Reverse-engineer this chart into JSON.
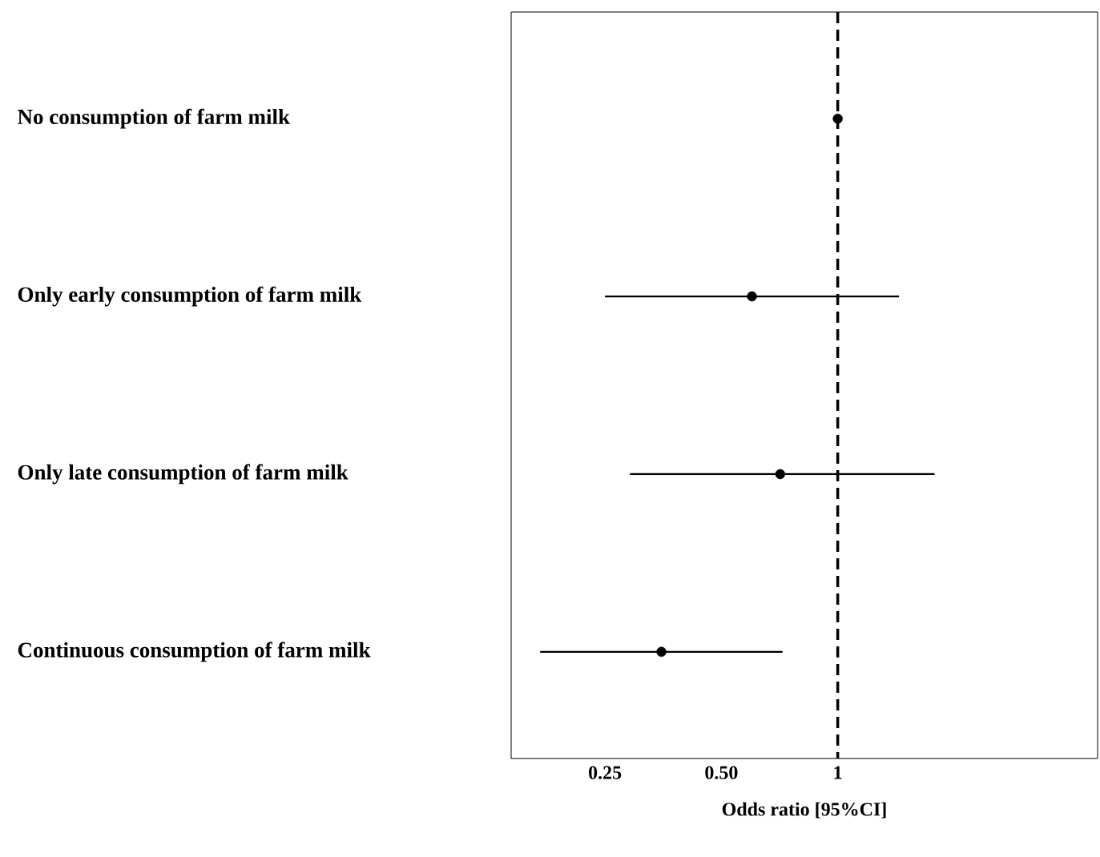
{
  "chart_data": {
    "type": "scatter",
    "orientation": "horizontal",
    "xlabel": "Odds ratio [95%CI]",
    "categories": [
      "No consumption of farm milk",
      "Only early consumption of farm milk",
      "Only late consumption of farm milk",
      "Continuous consumption of farm milk"
    ],
    "values": [
      1,
      0.6,
      0.71,
      0.35
    ],
    "errors": [
      null,
      [
        0.25,
        1.44
      ],
      [
        0.29,
        1.78
      ],
      [
        0.17,
        0.72
      ]
    ],
    "color": "#000000",
    "log": "x",
    "grid": false,
    "xlim": [
      0.143,
      4.7
    ],
    "xticks": [
      0.25,
      {
        "value": 0.5,
        "label": "0.50"
      },
      1
    ],
    "ref_lines": [
      {
        "axis": "x",
        "value": 1,
        "color": "#000000",
        "line_style": "dashed"
      }
    ]
  }
}
